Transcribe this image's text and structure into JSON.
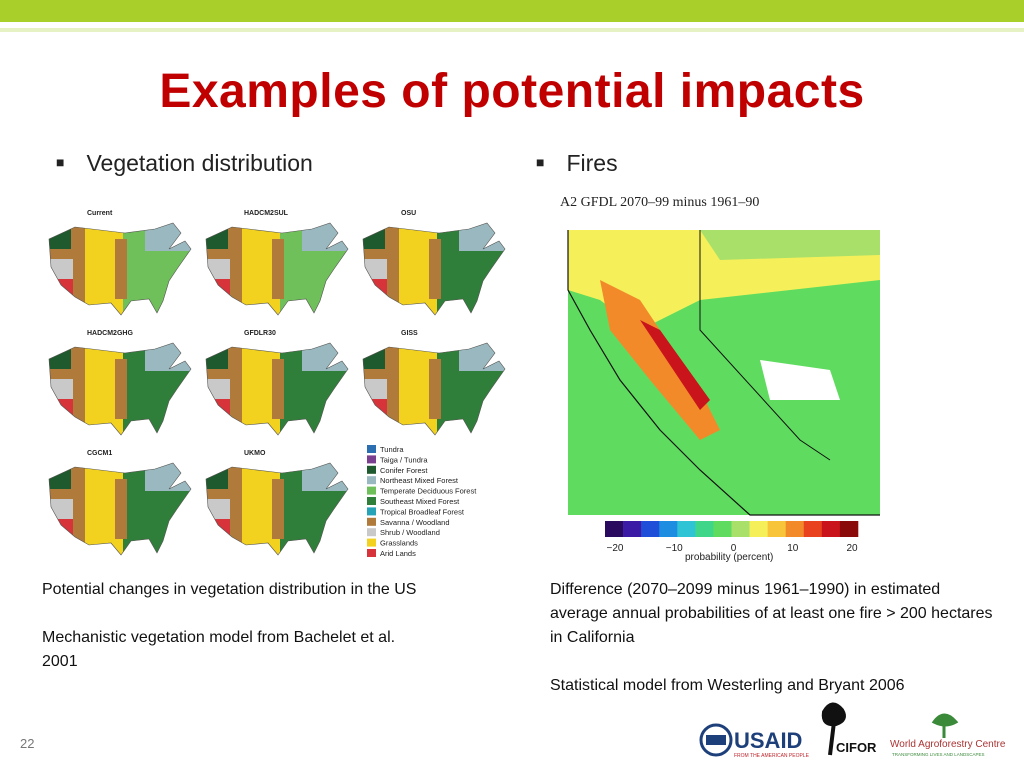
{
  "title": "Examples of potential impacts",
  "left": {
    "bullet": "Vegetation distribution",
    "maps": [
      "Current",
      "HADCM2SUL",
      "OSU",
      "HADCM2GHG",
      "GFDLR30",
      "GISS",
      "CGCM1",
      "UKMO"
    ],
    "legend": [
      {
        "label": "Tundra",
        "color": "#2c6fb0"
      },
      {
        "label": "Taiga / Tundra",
        "color": "#7a3f8f"
      },
      {
        "label": "Conifer Forest",
        "color": "#1f5a2e"
      },
      {
        "label": "Northeast Mixed Forest",
        "color": "#9ab8c0"
      },
      {
        "label": "Temperate Deciduous Forest",
        "color": "#6fbf5a"
      },
      {
        "label": "Southeast Mixed Forest",
        "color": "#2f7f3a"
      },
      {
        "label": "Tropical Broadleaf Forest",
        "color": "#27a3b8"
      },
      {
        "label": "Savanna / Woodland",
        "color": "#b07a3a"
      },
      {
        "label": "Shrub / Woodland",
        "color": "#c9c9c9"
      },
      {
        "label": "Grasslands",
        "color": "#f2d21e"
      },
      {
        "label": "Arid Lands",
        "color": "#d6333a"
      }
    ],
    "caption": [
      "Potential changes in vegetation distribution in the US",
      "Mechanistic vegetation model from Bachelet et al. 2001"
    ]
  },
  "right": {
    "bullet": "Fires",
    "map_title": "A2 GFDL 2070–99 minus 1961–90",
    "colorbar": {
      "colors": [
        "#2a0a5e",
        "#3b1ba6",
        "#1f4fd8",
        "#1c8de0",
        "#2ec4d6",
        "#3fd68a",
        "#5fdc5f",
        "#a8e06a",
        "#f5f05a",
        "#f7c43a",
        "#f28a2a",
        "#e8421f",
        "#c8141a",
        "#8a0a0a"
      ],
      "ticks": [
        "−20",
        "−10",
        "0",
        "10",
        "20"
      ],
      "label": "probability (percent)"
    },
    "caption": [
      "Difference (2070–2099 minus 1961–1990) in estimated average annual probabilities of at least one fire > 200 hectares in California",
      "Statistical model from Westerling and Bryant 2006"
    ]
  },
  "footer": {
    "page": "22",
    "logos": [
      "USAID",
      "FROM THE AMERICAN PEOPLE",
      "CIFOR",
      "World Agroforestry Centre",
      "TRANSFORMING LIVES AND LANDSCAPES"
    ]
  }
}
